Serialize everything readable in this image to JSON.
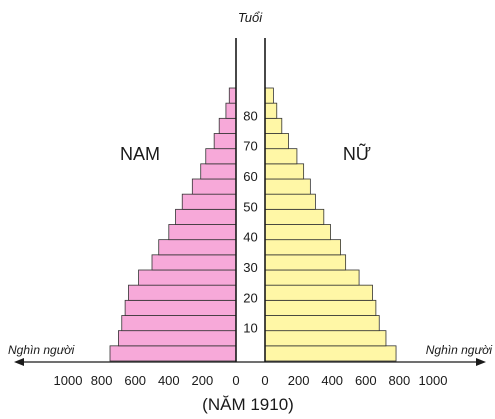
{
  "chart_data": {
    "type": "bar",
    "subtype": "population-pyramid",
    "title": "(NĂM 1910)",
    "age_axis_label": "Tuổi",
    "x_axis_label_left": "Nghìn người",
    "x_axis_label_right": "Nghìn người",
    "age_tick_labels": [
      "10",
      "20",
      "30",
      "40",
      "50",
      "60",
      "70",
      "80"
    ],
    "x_tick_labels_left": [
      "1000",
      "800",
      "600",
      "400",
      "200",
      "0"
    ],
    "x_tick_labels_right": [
      "0",
      "200",
      "400",
      "600",
      "800",
      "1000"
    ],
    "xlim": [
      0,
      1000
    ],
    "age_groups": [
      "0-4",
      "5-9",
      "10-14",
      "15-19",
      "20-24",
      "25-29",
      "30-34",
      "35-39",
      "40-44",
      "45-49",
      "50-54",
      "55-59",
      "60-64",
      "65-69",
      "70-74",
      "75-79",
      "80-84",
      "85+"
    ],
    "series": [
      {
        "name": "NAM",
        "side": "left",
        "color": "#f7a9d9",
        "values": [
          750,
          700,
          680,
          660,
          640,
          580,
          500,
          460,
          400,
          360,
          320,
          260,
          210,
          180,
          130,
          100,
          60,
          40
        ]
      },
      {
        "name": "NỮ",
        "side": "right",
        "color": "#fff7a6",
        "values": [
          780,
          720,
          680,
          660,
          640,
          560,
          480,
          450,
          390,
          350,
          300,
          270,
          230,
          190,
          140,
          100,
          70,
          50
        ]
      }
    ]
  }
}
